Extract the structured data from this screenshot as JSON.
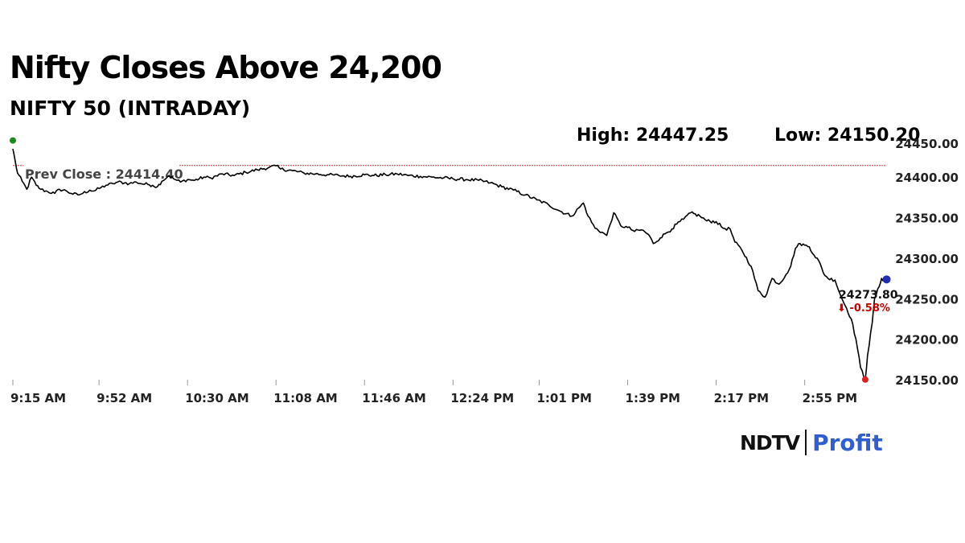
{
  "headline": "Nifty Closes Above 24,200",
  "subtitle": "NIFTY 50 (INTRADAY)",
  "high_label": "High: 24447.25",
  "low_label": "Low: 24150.20",
  "prev_close_label": "Prev Close : 24414.40",
  "last_value_label": "24273.80",
  "change_label": "⬇ -0.58%",
  "logo": {
    "left": "NDTV",
    "right": "Profit"
  },
  "colors": {
    "line": "#000000",
    "prev_close": "#d04040",
    "change": "#cc0000",
    "open_marker": "#1a8a1a",
    "low_marker": "#e02020",
    "last_marker": "#1f2fb0",
    "logo_profit": "#2f5fd0"
  },
  "chart_data": {
    "type": "line",
    "title": "NIFTY 50 (INTRADAY)",
    "xlabel": "",
    "ylabel": "",
    "xlim": [
      "9:15 AM",
      "3:30 PM"
    ],
    "ylim": [
      24150,
      24430
    ],
    "x_ticks": [
      "9:15 AM",
      "9:52 AM",
      "10:30 AM",
      "11:08 AM",
      "11:46 AM",
      "12:24 PM",
      "1:01 PM",
      "1:39 PM",
      "2:17 PM",
      "2:55 PM"
    ],
    "y_ticks": [
      "24150.00",
      "24200.00",
      "24250.00",
      "24300.00",
      "24350.00",
      "24400.00",
      "24450.00"
    ],
    "y_tick_values": [
      24150,
      24200,
      24250,
      24300,
      24350,
      24400,
      24450
    ],
    "prev_close": 24414.4,
    "high": 24447.25,
    "low": 24150.2,
    "last": 24273.8,
    "change_pct": -0.58,
    "grid": false,
    "series": [
      {
        "x": [
          "9:15",
          "9:16",
          "9:17",
          "9:19",
          "9:21",
          "9:23",
          "9:25",
          "9:27",
          "9:30",
          "9:33",
          "9:35",
          "9:38",
          "9:40",
          "9:43",
          "9:45",
          "9:48",
          "9:50",
          "9:52",
          "9:55",
          "9:58",
          "10:00",
          "10:03",
          "10:05",
          "10:08",
          "10:10",
          "10:13",
          "10:15",
          "10:17",
          "10:19",
          "10:22",
          "10:24",
          "10:27",
          "10:30",
          "10:33",
          "10:37",
          "10:40",
          "10:45",
          "10:50",
          "10:55",
          "11:00",
          "11:05",
          "11:08",
          "11:10",
          "11:15",
          "11:20",
          "11:25",
          "11:30",
          "11:35",
          "11:40",
          "11:46",
          "11:50",
          "11:55",
          "12:00",
          "12:05",
          "12:10",
          "12:15",
          "12:20",
          "12:24",
          "12:30",
          "12:35",
          "12:40",
          "12:45",
          "12:50",
          "12:55",
          "13:00",
          "13:05",
          "13:10",
          "13:15",
          "13:18",
          "13:20",
          "13:22",
          "13:25",
          "13:28",
          "13:30",
          "13:33",
          "13:36",
          "13:39",
          "13:42",
          "13:45",
          "13:48",
          "13:50",
          "13:53",
          "13:55",
          "13:58",
          "14:00",
          "14:03",
          "14:06",
          "14:10",
          "14:13",
          "14:17",
          "14:20",
          "14:23",
          "14:25",
          "14:28",
          "14:32",
          "14:35",
          "14:38",
          "14:41",
          "14:44",
          "14:47",
          "14:49",
          "14:51",
          "14:53",
          "14:55",
          "14:57",
          "14:59",
          "15:01",
          "15:03",
          "15:05",
          "15:08",
          "15:11",
          "15:13",
          "15:15",
          "15:17",
          "15:19",
          "15:21",
          "15:22",
          "15:24",
          "15:25",
          "15:27",
          "15:28",
          "15:29",
          "15:30"
        ],
        "y": [
          24435,
          24420,
          24405,
          24395,
          24385,
          24400,
          24390,
          24385,
          24382,
          24380,
          24385,
          24383,
          24380,
          24378,
          24380,
          24384,
          24383,
          24386,
          24390,
          24392,
          24394,
          24393,
          24392,
          24394,
          24392,
          24391,
          24390,
          24388,
          24395,
          24402,
          24398,
          24394,
          24397,
          24396,
          24400,
          24399,
          24404,
          24402,
          24406,
          24409,
          24412,
          24414,
          24410,
          24408,
          24405,
          24404,
          24403,
          24402,
          24401,
          24403,
          24402,
          24403,
          24404,
          24402,
          24401,
          24400,
          24399,
          24398,
          24397,
          24396,
          24393,
          24388,
          24384,
          24378,
          24372,
          24366,
          24358,
          24352,
          24362,
          24368,
          24352,
          24337,
          24332,
          24328,
          24356,
          24340,
          24338,
          24333,
          24335,
          24329,
          24318,
          24325,
          24330,
          24336,
          24342,
          24348,
          24356,
          24352,
          24346,
          24345,
          24337,
          24336,
          24320,
          24310,
          24290,
          24260,
          24252,
          24275,
          24268,
          24280,
          24290,
          24312,
          24318,
          24316,
          24314,
          24304,
          24297,
          24282,
          24275,
          24273,
          24250,
          24238,
          24225,
          24200,
          24165,
          24150,
          24180,
          24220,
          24250,
          24265,
          24275,
          24273,
          24273.8
        ]
      }
    ]
  }
}
